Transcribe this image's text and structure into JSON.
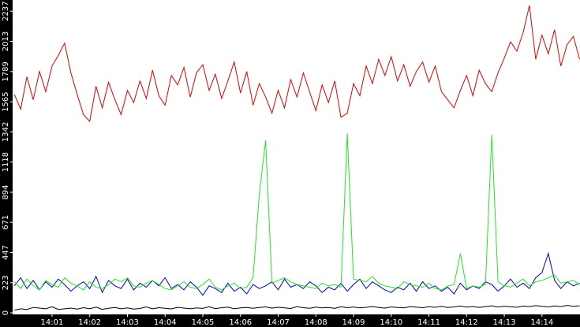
{
  "chart_data": {
    "type": "line",
    "categories": [
      null,
      null,
      null,
      null,
      null,
      null,
      "14:01",
      null,
      null,
      null,
      null,
      null,
      "14:02",
      null,
      null,
      null,
      null,
      null,
      "14:03",
      null,
      null,
      null,
      null,
      null,
      "14:04",
      null,
      null,
      null,
      null,
      null,
      "14:05",
      null,
      null,
      null,
      null,
      null,
      "14:06",
      null,
      null,
      null,
      null,
      null,
      "14:07",
      null,
      null,
      null,
      null,
      null,
      "14:08",
      null,
      null,
      null,
      null,
      null,
      "14:09",
      null,
      null,
      null,
      null,
      null,
      "14:10",
      null,
      null,
      null,
      null,
      null,
      "14:11",
      null,
      null,
      null,
      null,
      null,
      "14:12",
      null,
      null,
      null,
      null,
      null,
      "14:13",
      null,
      null,
      null,
      null,
      null,
      "14:14",
      null,
      null,
      null,
      null,
      null,
      null
    ],
    "ylim": [
      0,
      2320
    ],
    "yticks": [
      0,
      223,
      447,
      671,
      894,
      1118,
      1342,
      1565,
      1789,
      2013,
      2237
    ],
    "series": [
      {
        "color": "#e00000",
        "values": [
          1620,
          1510,
          1750,
          1580,
          1790,
          1640,
          1830,
          1910,
          2000,
          1780,
          1620,
          1470,
          1420,
          1680,
          1520,
          1710,
          1580,
          1470,
          1650,
          1560,
          1720,
          1590,
          1800,
          1610,
          1540,
          1760,
          1690,
          1820,
          1600,
          1780,
          1840,
          1650,
          1770,
          1590,
          1720,
          1860,
          1630,
          1790,
          1540,
          1700,
          1600,
          1480,
          1650,
          1520,
          1730,
          1600,
          1780,
          1640,
          1500,
          1690,
          1560,
          1720,
          1450,
          1480,
          1700,
          1610,
          1830,
          1700,
          1880,
          1760,
          1900,
          1720,
          1840,
          1680,
          1790,
          1860,
          1710,
          1830,
          1640,
          1580,
          1520,
          1650,
          1760,
          1610,
          1800,
          1700,
          1640,
          1780,
          1890,
          2010,
          1940,
          2080,
          2280,
          1880,
          2060,
          1920,
          2100,
          1830,
          1990,
          2050,
          1880
        ]
      },
      {
        "color": "#22e622",
        "values": [
          230,
          180,
          250,
          200,
          170,
          240,
          210,
          190,
          260,
          220,
          200,
          170,
          230,
          190,
          180,
          210,
          250,
          230,
          260,
          200,
          190,
          220,
          240,
          210,
          180,
          170,
          200,
          230,
          190,
          180,
          210,
          250,
          190,
          170,
          200,
          220,
          180,
          190,
          260,
          880,
          1280,
          220,
          240,
          260,
          230,
          210,
          200,
          190,
          180,
          220,
          200,
          210,
          190,
          1330,
          250,
          240,
          230,
          270,
          220,
          200,
          190,
          180,
          230,
          210,
          200,
          190,
          220,
          180,
          170,
          200,
          210,
          440,
          180,
          200,
          190,
          210,
          1320,
          230,
          200,
          190,
          220,
          250,
          200,
          230,
          240,
          260,
          280,
          220,
          230,
          240,
          210
        ]
      },
      {
        "color": "#0000cc",
        "values": [
          200,
          260,
          180,
          240,
          170,
          230,
          190,
          250,
          210,
          160,
          200,
          230,
          180,
          270,
          150,
          240,
          200,
          180,
          250,
          170,
          220,
          190,
          240,
          200,
          260,
          180,
          210,
          170,
          230,
          190,
          130,
          200,
          180,
          150,
          220,
          160,
          190,
          140,
          210,
          180,
          200,
          230,
          170,
          250,
          190,
          210,
          180,
          230,
          200,
          150,
          190,
          170,
          220,
          160,
          210,
          250,
          180,
          230,
          200,
          170,
          150,
          190,
          170,
          220,
          160,
          230,
          180,
          200,
          160,
          190,
          140,
          220,
          170,
          200,
          180,
          230,
          210,
          160,
          200,
          250,
          190,
          220,
          180,
          260,
          300,
          440,
          240,
          180,
          230,
          200,
          220
        ]
      },
      {
        "color": "#000000",
        "values": [
          20,
          30,
          25,
          40,
          35,
          30,
          45,
          25,
          30,
          35,
          28,
          38,
          30,
          42,
          26,
          34,
          40,
          30,
          36,
          28,
          32,
          44,
          30,
          38,
          34,
          29,
          41,
          35,
          30,
          37,
          33,
          45,
          31,
          38,
          42,
          30,
          36,
          40,
          34,
          39,
          44,
          35,
          41,
          37,
          32,
          46,
          38,
          34,
          42,
          36,
          40,
          33,
          45,
          38,
          43,
          36,
          41,
          47,
          39,
          35,
          44,
          40,
          37,
          46,
          42,
          38,
          45,
          41,
          48,
          39,
          44,
          50,
          42,
          47,
          40,
          46,
          52,
          43,
          49,
          45,
          41,
          50,
          46,
          53,
          48,
          44,
          51,
          47,
          55,
          49,
          52
        ]
      }
    ]
  }
}
